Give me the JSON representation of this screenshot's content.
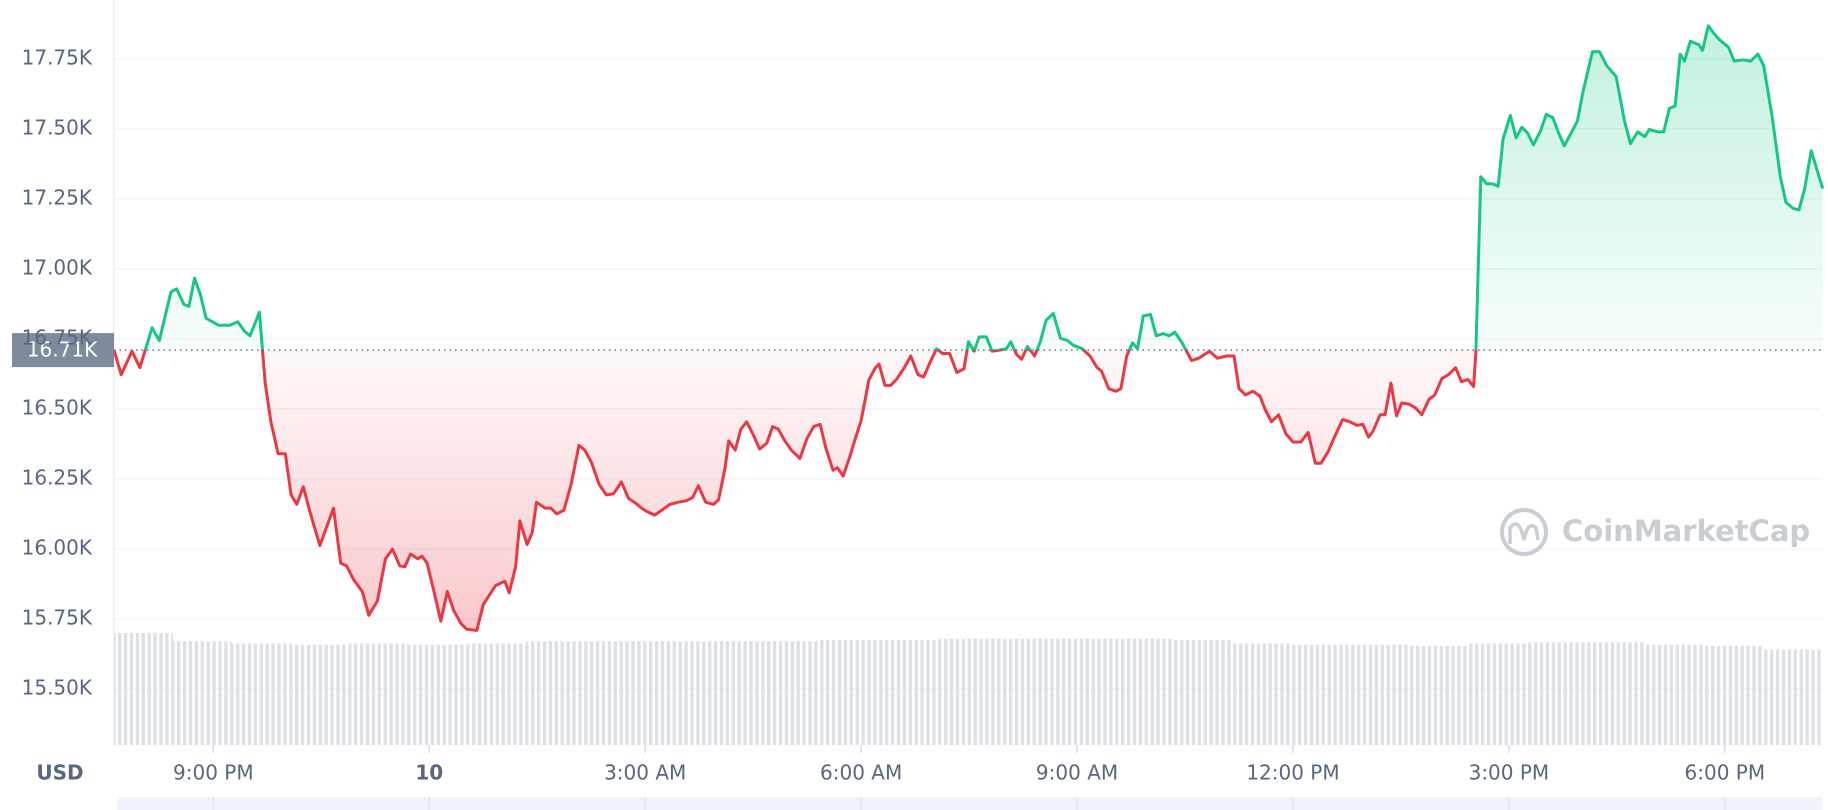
{
  "chart_data": {
    "type": "line",
    "ylabel": "USD",
    "watermark": "CoinMarketCap",
    "reference": {
      "value": 16710,
      "label": "16.71K"
    },
    "colors": {
      "above": "#16c784",
      "below": "#ea3943"
    },
    "grid": true,
    "xlim": [
      19.62,
      43.35
    ],
    "ylim": [
      15300,
      17960
    ],
    "xticks": [
      {
        "value": 21,
        "label": "9:00 PM"
      },
      {
        "value": 24,
        "label": "10",
        "bold": true
      },
      {
        "value": 27,
        "label": "3:00 AM"
      },
      {
        "value": 30,
        "label": "6:00 AM"
      },
      {
        "value": 33,
        "label": "9:00 AM"
      },
      {
        "value": 36,
        "label": "12:00 PM"
      },
      {
        "value": 39,
        "label": "3:00 PM"
      },
      {
        "value": 42,
        "label": "6:00 PM"
      }
    ],
    "yticks": [
      {
        "value": 15500,
        "label": "15.50K"
      },
      {
        "value": 15750,
        "label": "15.75K"
      },
      {
        "value": 16000,
        "label": "16.00K"
      },
      {
        "value": 16250,
        "label": "16.25K"
      },
      {
        "value": 16500,
        "label": "16.50K"
      },
      {
        "value": 16750,
        "label": "16.75K"
      },
      {
        "value": 17000,
        "label": "17.00K"
      },
      {
        "value": 17250,
        "label": "17.25K"
      },
      {
        "value": 17500,
        "label": "17.50K"
      },
      {
        "value": 17750,
        "label": "17.75K"
      }
    ],
    "x": [
      19.62,
      19.72,
      19.87,
      19.98,
      20.15,
      20.25,
      20.41,
      20.49,
      20.59,
      20.66,
      20.74,
      20.82,
      20.9,
      21.07,
      21.23,
      21.34,
      21.43,
      21.51,
      21.64,
      21.72,
      21.8,
      21.9,
      22.0,
      22.08,
      22.16,
      22.25,
      22.34,
      22.48,
      22.57,
      22.67,
      22.77,
      22.85,
      22.95,
      23.07,
      23.16,
      23.28,
      23.39,
      23.49,
      23.59,
      23.66,
      23.74,
      23.84,
      23.9,
      23.97,
      24.07,
      24.16,
      24.25,
      24.34,
      24.44,
      24.52,
      24.66,
      24.75,
      24.92,
      25.05,
      25.11,
      25.2,
      25.26,
      25.36,
      25.43,
      25.49,
      25.61,
      25.69,
      25.77,
      25.87,
      25.97,
      26.08,
      26.16,
      26.25,
      26.36,
      26.46,
      26.56,
      26.67,
      26.77,
      26.87,
      26.95,
      27.02,
      27.13,
      27.25,
      27.34,
      27.46,
      27.57,
      27.66,
      27.74,
      27.84,
      27.95,
      28.02,
      28.11,
      28.16,
      28.25,
      28.33,
      28.41,
      28.51,
      28.59,
      28.69,
      28.77,
      28.85,
      28.93,
      29.03,
      29.15,
      29.25,
      29.34,
      29.43,
      29.51,
      29.61,
      29.67,
      29.75,
      29.84,
      29.92,
      30.0,
      30.11,
      30.2,
      30.25,
      30.33,
      30.41,
      30.49,
      30.59,
      30.69,
      30.79,
      30.87,
      30.97,
      31.05,
      31.13,
      31.23,
      31.33,
      31.43,
      31.49,
      31.57,
      31.64,
      31.74,
      31.82,
      31.92,
      32.02,
      32.08,
      32.16,
      32.23,
      32.31,
      32.41,
      32.49,
      32.57,
      32.67,
      32.77,
      32.87,
      32.95,
      33.07,
      33.18,
      33.28,
      33.34,
      33.44,
      33.54,
      33.61,
      33.69,
      33.77,
      33.84,
      33.92,
      34.02,
      34.1,
      34.2,
      34.28,
      34.36,
      34.46,
      34.59,
      34.69,
      34.84,
      34.95,
      35.08,
      35.18,
      35.25,
      35.34,
      35.44,
      35.54,
      35.61,
      35.7,
      35.8,
      35.9,
      36.0,
      36.11,
      36.21,
      36.31,
      36.39,
      36.49,
      36.59,
      36.69,
      36.79,
      36.89,
      36.97,
      37.05,
      37.11,
      37.21,
      37.28,
      37.36,
      37.44,
      37.51,
      37.61,
      37.7,
      37.79,
      37.89,
      37.97,
      38.07,
      38.16,
      38.26,
      38.34,
      38.43,
      38.51,
      38.54,
      38.61,
      38.69,
      38.77,
      38.85,
      38.92,
      39.02,
      39.1,
      39.18,
      39.26,
      39.34,
      39.44,
      39.52,
      39.61,
      39.69,
      39.77,
      39.89,
      39.95,
      40.03,
      40.16,
      40.26,
      40.36,
      40.49,
      40.61,
      40.69,
      40.79,
      40.89,
      40.95,
      41.07,
      41.15,
      41.23,
      41.31,
      41.38,
      41.44,
      41.52,
      41.64,
      41.69,
      41.77,
      41.84,
      41.93,
      42.05,
      42.13,
      42.25,
      42.36,
      42.46,
      42.54,
      42.66,
      42.77,
      42.85,
      42.95,
      43.03,
      43.11,
      43.2,
      43.36
    ],
    "values": [
      16710,
      16622,
      16706,
      16647,
      16790,
      16744,
      16917,
      16929,
      16874,
      16866,
      16967,
      16908,
      16824,
      16799,
      16799,
      16811,
      16778,
      16761,
      16845,
      16592,
      16454,
      16340,
      16340,
      16193,
      16159,
      16222,
      16134,
      16012,
      16075,
      16146,
      15949,
      15940,
      15890,
      15848,
      15763,
      15814,
      15965,
      15999,
      15940,
      15936,
      15982,
      15965,
      15974,
      15949,
      15843,
      15742,
      15848,
      15780,
      15734,
      15713,
      15709,
      15801,
      15869,
      15885,
      15843,
      15936,
      16100,
      16016,
      16058,
      16167,
      16146,
      16146,
      16125,
      16138,
      16231,
      16370,
      16353,
      16311,
      16231,
      16193,
      16197,
      16239,
      16180,
      16163,
      16146,
      16134,
      16121,
      16142,
      16159,
      16167,
      16172,
      16184,
      16226,
      16167,
      16159,
      16176,
      16290,
      16386,
      16353,
      16428,
      16454,
      16403,
      16357,
      16378,
      16437,
      16428,
      16390,
      16353,
      16323,
      16395,
      16437,
      16445,
      16361,
      16281,
      16290,
      16260,
      16327,
      16395,
      16458,
      16605,
      16647,
      16660,
      16584,
      16584,
      16605,
      16643,
      16689,
      16622,
      16614,
      16673,
      16715,
      16698,
      16698,
      16630,
      16643,
      16740,
      16706,
      16757,
      16757,
      16706,
      16710,
      16715,
      16740,
      16694,
      16677,
      16723,
      16689,
      16740,
      16816,
      16841,
      16752,
      16744,
      16727,
      16715,
      16689,
      16647,
      16635,
      16572,
      16563,
      16572,
      16689,
      16736,
      16715,
      16832,
      16837,
      16761,
      16769,
      16761,
      16774,
      16736,
      16673,
      16681,
      16706,
      16681,
      16689,
      16689,
      16572,
      16550,
      16563,
      16546,
      16500,
      16454,
      16479,
      16412,
      16382,
      16382,
      16416,
      16306,
      16306,
      16348,
      16407,
      16462,
      16454,
      16441,
      16445,
      16399,
      16420,
      16479,
      16479,
      16592,
      16475,
      16521,
      16517,
      16504,
      16479,
      16534,
      16550,
      16609,
      16622,
      16647,
      16597,
      16605,
      16580,
      16698,
      17329,
      17304,
      17304,
      17295,
      17464,
      17548,
      17468,
      17506,
      17485,
      17443,
      17493,
      17552,
      17540,
      17485,
      17439,
      17498,
      17527,
      17632,
      17775,
      17775,
      17725,
      17687,
      17523,
      17447,
      17489,
      17472,
      17498,
      17489,
      17489,
      17573,
      17582,
      17767,
      17742,
      17813,
      17800,
      17780,
      17868,
      17843,
      17817,
      17792,
      17742,
      17746,
      17742,
      17767,
      17725,
      17540,
      17329,
      17237,
      17216,
      17211,
      17287,
      17422,
      17287
    ],
    "volume": {
      "color": "#dde1e7",
      "vlim": [
        0,
        100
      ],
      "values": [
        95,
        88,
        86,
        85,
        86,
        85,
        86,
        88,
        88,
        88,
        88,
        88,
        89,
        89,
        90,
        90,
        90,
        90,
        89,
        86,
        85,
        85,
        84,
        86,
        87,
        87,
        85,
        84,
        81
      ]
    }
  }
}
